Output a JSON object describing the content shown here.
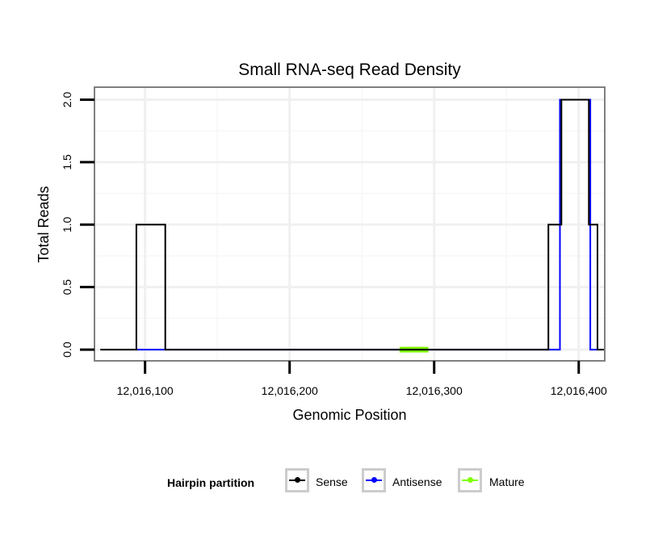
{
  "chart_data": {
    "type": "line",
    "title": "Small RNA-seq Read Density",
    "xlabel": "Genomic Position",
    "ylabel": "Total Reads",
    "xlim": [
      12016065,
      12016418
    ],
    "ylim": [
      -0.09,
      2.1
    ],
    "x_ticks": [
      12016100,
      12016200,
      12016300,
      12016400
    ],
    "x_tick_labels": [
      "12,016,100",
      "12,016,200",
      "12,016,300",
      "12,016,400"
    ],
    "y_ticks": [
      0,
      0.5,
      1,
      1.5,
      2
    ],
    "y_tick_labels": [
      "0.0",
      "0.5",
      "1.0",
      "1.5",
      "2.0"
    ],
    "grid": true,
    "legend_position": "bottom",
    "series": [
      {
        "name": "Sense",
        "color": "#000000",
        "x": [
          12016069,
          12016094,
          12016094,
          12016114,
          12016114,
          12016379,
          12016379,
          12016388,
          12016388,
          12016407,
          12016407,
          12016413,
          12016413,
          12016418
        ],
        "y": [
          0,
          0,
          1,
          1,
          0,
          0,
          1,
          1,
          2,
          2,
          1,
          1,
          0,
          0
        ]
      },
      {
        "name": "Antisense",
        "color": "#0000ff",
        "x": [
          12016094,
          12016114,
          12016379,
          12016387,
          12016387,
          12016408,
          12016408,
          12016413
        ],
        "y": [
          0,
          0,
          0,
          0,
          2,
          2,
          0,
          0
        ]
      },
      {
        "name": "Mature",
        "color": "#7fff00",
        "x": [
          12016276,
          12016296
        ],
        "y": [
          0,
          0
        ]
      }
    ]
  },
  "legend": {
    "title": "Hairpin partition",
    "items": [
      "Sense",
      "Antisense",
      "Mature"
    ]
  }
}
